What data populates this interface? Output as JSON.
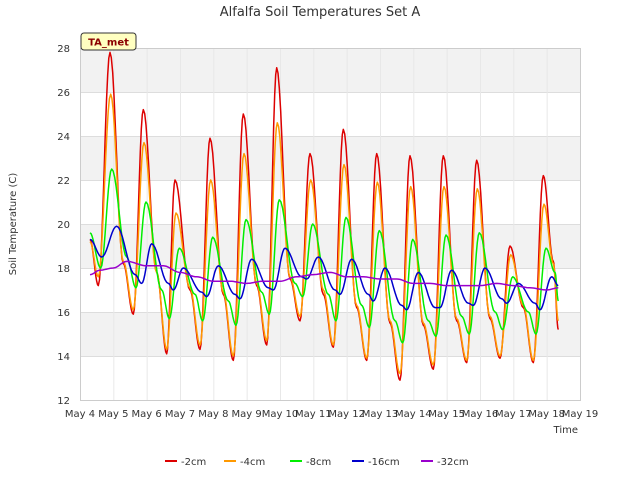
{
  "chart_data": {
    "type": "line",
    "title": "Alfalfa Soil Temperatures Set A",
    "xlabel": "Time",
    "ylabel": "Soil Temperature (C)",
    "site_tag": "TA_met",
    "xlim": [
      4,
      19
    ],
    "ylim": [
      12,
      28
    ],
    "x_ticks": [
      4,
      5,
      6,
      7,
      8,
      9,
      10,
      11,
      12,
      13,
      14,
      15,
      16,
      17,
      18,
      19
    ],
    "x_tick_labels": [
      "May 4",
      "May 5",
      "May 6",
      "May 7",
      "May 8",
      "May 9",
      "May 10",
      "May 11",
      "May 12",
      "May 13",
      "May 14",
      "May 15",
      "May 16",
      "May 17",
      "May 18",
      "May 19"
    ],
    "y_ticks": [
      12,
      14,
      16,
      18,
      20,
      22,
      24,
      26,
      28
    ],
    "y_tick_labels": [
      "12",
      "14",
      "16",
      "18",
      "20",
      "22",
      "24",
      "26",
      "28"
    ],
    "grid": true,
    "legend_position": "bottom",
    "series": [
      {
        "name": "-2cm",
        "color": "#dd0000",
        "points": [
          [
            4.3,
            19.3
          ],
          [
            4.55,
            17.2
          ],
          [
            4.9,
            27.8
          ],
          [
            5.3,
            18.2
          ],
          [
            5.6,
            15.9
          ],
          [
            5.9,
            25.2
          ],
          [
            6.3,
            17.8
          ],
          [
            6.6,
            14.1
          ],
          [
            6.85,
            22.0
          ],
          [
            7.3,
            17.0
          ],
          [
            7.6,
            14.3
          ],
          [
            7.9,
            23.9
          ],
          [
            8.3,
            16.8
          ],
          [
            8.6,
            13.8
          ],
          [
            8.9,
            25.0
          ],
          [
            9.3,
            17.2
          ],
          [
            9.6,
            14.5
          ],
          [
            9.9,
            27.1
          ],
          [
            10.3,
            17.5
          ],
          [
            10.6,
            15.6
          ],
          [
            10.9,
            23.2
          ],
          [
            11.3,
            16.8
          ],
          [
            11.6,
            14.4
          ],
          [
            11.9,
            24.3
          ],
          [
            12.3,
            16.2
          ],
          [
            12.6,
            13.8
          ],
          [
            12.9,
            23.2
          ],
          [
            13.3,
            15.5
          ],
          [
            13.6,
            12.9
          ],
          [
            13.9,
            23.1
          ],
          [
            14.3,
            15.4
          ],
          [
            14.6,
            13.4
          ],
          [
            14.9,
            23.1
          ],
          [
            15.3,
            15.6
          ],
          [
            15.6,
            13.7
          ],
          [
            15.9,
            22.9
          ],
          [
            16.3,
            15.7
          ],
          [
            16.6,
            13.9
          ],
          [
            16.9,
            19.0
          ],
          [
            17.3,
            16.2
          ],
          [
            17.6,
            13.7
          ],
          [
            17.9,
            22.2
          ],
          [
            18.2,
            18.3
          ],
          [
            18.35,
            15.2
          ]
        ]
      },
      {
        "name": "-4cm",
        "color": "#ff9900",
        "points": [
          [
            4.3,
            19.2
          ],
          [
            4.55,
            17.6
          ],
          [
            4.92,
            25.9
          ],
          [
            5.3,
            18.3
          ],
          [
            5.6,
            16.1
          ],
          [
            5.92,
            23.7
          ],
          [
            6.3,
            17.8
          ],
          [
            6.6,
            14.3
          ],
          [
            6.88,
            20.5
          ],
          [
            7.3,
            17.1
          ],
          [
            7.6,
            14.5
          ],
          [
            7.92,
            22.0
          ],
          [
            8.3,
            16.9
          ],
          [
            8.6,
            14.0
          ],
          [
            8.92,
            23.2
          ],
          [
            9.3,
            17.3
          ],
          [
            9.6,
            14.7
          ],
          [
            9.92,
            24.6
          ],
          [
            10.3,
            17.6
          ],
          [
            10.6,
            15.8
          ],
          [
            10.92,
            22.0
          ],
          [
            11.3,
            17.0
          ],
          [
            11.6,
            14.5
          ],
          [
            11.92,
            22.7
          ],
          [
            12.3,
            16.3
          ],
          [
            12.6,
            13.9
          ],
          [
            12.92,
            21.9
          ],
          [
            13.3,
            15.6
          ],
          [
            13.6,
            13.2
          ],
          [
            13.92,
            21.7
          ],
          [
            14.3,
            15.5
          ],
          [
            14.6,
            13.6
          ],
          [
            14.92,
            21.7
          ],
          [
            15.3,
            15.7
          ],
          [
            15.6,
            13.8
          ],
          [
            15.92,
            21.6
          ],
          [
            16.3,
            15.8
          ],
          [
            16.6,
            14.0
          ],
          [
            16.92,
            18.6
          ],
          [
            17.3,
            16.3
          ],
          [
            17.6,
            13.8
          ],
          [
            17.92,
            20.9
          ],
          [
            18.2,
            18.2
          ],
          [
            18.35,
            15.6
          ]
        ]
      },
      {
        "name": "-8cm",
        "color": "#00ee00",
        "points": [
          [
            4.3,
            19.6
          ],
          [
            4.62,
            18.0
          ],
          [
            4.95,
            22.5
          ],
          [
            5.4,
            18.5
          ],
          [
            5.68,
            17.1
          ],
          [
            5.98,
            21.0
          ],
          [
            6.45,
            17.0
          ],
          [
            6.68,
            15.7
          ],
          [
            6.98,
            18.9
          ],
          [
            7.45,
            16.8
          ],
          [
            7.68,
            15.6
          ],
          [
            7.98,
            19.4
          ],
          [
            8.45,
            16.5
          ],
          [
            8.68,
            15.4
          ],
          [
            8.98,
            20.2
          ],
          [
            9.45,
            16.9
          ],
          [
            9.68,
            15.9
          ],
          [
            9.98,
            21.1
          ],
          [
            10.45,
            17.3
          ],
          [
            10.68,
            16.7
          ],
          [
            10.98,
            20.0
          ],
          [
            11.45,
            16.8
          ],
          [
            11.68,
            15.6
          ],
          [
            11.98,
            20.3
          ],
          [
            12.45,
            16.3
          ],
          [
            12.68,
            15.3
          ],
          [
            12.98,
            19.7
          ],
          [
            13.45,
            15.6
          ],
          [
            13.68,
            14.6
          ],
          [
            13.98,
            19.3
          ],
          [
            14.45,
            15.6
          ],
          [
            14.68,
            14.9
          ],
          [
            14.98,
            19.5
          ],
          [
            15.45,
            15.8
          ],
          [
            15.68,
            15.0
          ],
          [
            15.98,
            19.6
          ],
          [
            16.45,
            16.0
          ],
          [
            16.68,
            15.2
          ],
          [
            16.98,
            17.6
          ],
          [
            17.45,
            16.0
          ],
          [
            17.68,
            15.0
          ],
          [
            17.98,
            18.9
          ],
          [
            18.25,
            17.8
          ],
          [
            18.35,
            16.5
          ]
        ]
      },
      {
        "name": "-16cm",
        "color": "#0000cc",
        "points": [
          [
            4.3,
            19.3
          ],
          [
            4.65,
            18.5
          ],
          [
            5.1,
            19.9
          ],
          [
            5.65,
            17.7
          ],
          [
            5.85,
            17.3
          ],
          [
            6.15,
            19.1
          ],
          [
            6.65,
            17.3
          ],
          [
            6.8,
            17.0
          ],
          [
            7.1,
            18.0
          ],
          [
            7.65,
            16.9
          ],
          [
            7.8,
            16.7
          ],
          [
            8.15,
            18.1
          ],
          [
            8.65,
            16.8
          ],
          [
            8.8,
            16.6
          ],
          [
            9.15,
            18.4
          ],
          [
            9.65,
            17.1
          ],
          [
            9.8,
            17.0
          ],
          [
            10.15,
            18.9
          ],
          [
            10.65,
            17.6
          ],
          [
            10.8,
            17.5
          ],
          [
            11.15,
            18.5
          ],
          [
            11.65,
            17.0
          ],
          [
            11.8,
            16.8
          ],
          [
            12.15,
            18.4
          ],
          [
            12.65,
            16.8
          ],
          [
            12.8,
            16.5
          ],
          [
            13.15,
            18.0
          ],
          [
            13.65,
            16.3
          ],
          [
            13.8,
            16.1
          ],
          [
            14.15,
            17.8
          ],
          [
            14.65,
            16.2
          ],
          [
            14.8,
            16.2
          ],
          [
            15.15,
            17.9
          ],
          [
            15.65,
            16.4
          ],
          [
            15.8,
            16.3
          ],
          [
            16.15,
            18.0
          ],
          [
            16.65,
            16.6
          ],
          [
            16.8,
            16.4
          ],
          [
            17.15,
            17.3
          ],
          [
            17.65,
            16.4
          ],
          [
            17.8,
            16.1
          ],
          [
            18.15,
            17.6
          ],
          [
            18.35,
            17.2
          ]
        ]
      },
      {
        "name": "-32cm",
        "color": "#9900cc",
        "points": [
          [
            4.3,
            17.7
          ],
          [
            4.6,
            17.9
          ],
          [
            5.0,
            18.0
          ],
          [
            5.4,
            18.3
          ],
          [
            6.0,
            18.1
          ],
          [
            6.5,
            18.1
          ],
          [
            7.0,
            17.8
          ],
          [
            7.5,
            17.6
          ],
          [
            8.0,
            17.4
          ],
          [
            8.5,
            17.4
          ],
          [
            9.0,
            17.3
          ],
          [
            9.5,
            17.4
          ],
          [
            10.0,
            17.4
          ],
          [
            10.5,
            17.6
          ],
          [
            11.0,
            17.7
          ],
          [
            11.5,
            17.8
          ],
          [
            12.0,
            17.6
          ],
          [
            12.5,
            17.6
          ],
          [
            13.0,
            17.5
          ],
          [
            13.5,
            17.5
          ],
          [
            14.0,
            17.3
          ],
          [
            14.5,
            17.3
          ],
          [
            15.0,
            17.2
          ],
          [
            15.5,
            17.2
          ],
          [
            16.0,
            17.2
          ],
          [
            16.5,
            17.3
          ],
          [
            17.0,
            17.2
          ],
          [
            17.5,
            17.1
          ],
          [
            18.0,
            17.0
          ],
          [
            18.35,
            17.1
          ]
        ]
      }
    ]
  }
}
